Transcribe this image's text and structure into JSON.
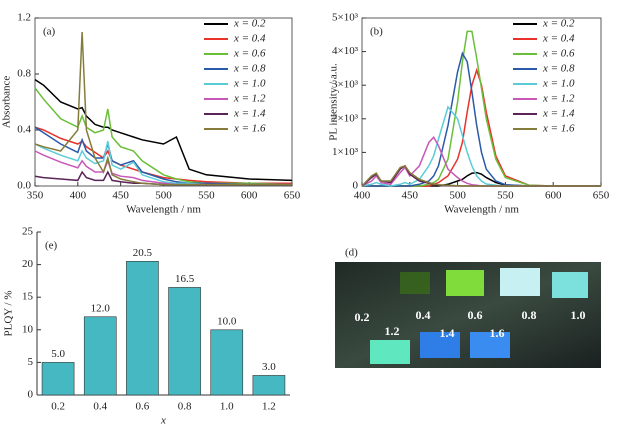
{
  "chart_data": [
    {
      "type": "line",
      "panel_label": "(a)",
      "xlabel": "Wavelength / nm",
      "ylabel": "Absorbance",
      "xlim": [
        350,
        650
      ],
      "xticks": [
        350,
        400,
        450,
        500,
        550,
        600,
        650
      ],
      "ylim": [
        0,
        1.2
      ],
      "yticks": [
        {
          "value": 0,
          "label": "0.0"
        },
        0.4,
        0.8,
        1.2
      ],
      "legend": "upper right",
      "x": [
        350,
        360,
        380,
        400,
        405,
        410,
        420,
        430,
        435,
        440,
        450,
        465,
        475,
        500,
        515,
        530,
        550,
        600,
        650
      ],
      "series": [
        {
          "name": "x = 0.2",
          "color": "#000000",
          "values": [
            0.76,
            0.72,
            0.6,
            0.55,
            0.56,
            0.5,
            0.44,
            0.42,
            0.42,
            0.4,
            0.38,
            0.35,
            0.33,
            0.3,
            0.35,
            0.12,
            0.08,
            0.05,
            0.04
          ]
        },
        {
          "name": "x = 0.4",
          "color": "#e8322a",
          "values": [
            0.42,
            0.4,
            0.34,
            0.3,
            0.32,
            0.28,
            0.24,
            0.2,
            0.25,
            0.18,
            0.15,
            0.12,
            0.1,
            0.06,
            0.05,
            0.04,
            0.03,
            0.02,
            0.02
          ]
        },
        {
          "name": "x = 0.6",
          "color": "#6abf3a",
          "values": [
            0.7,
            0.62,
            0.48,
            0.42,
            0.5,
            0.42,
            0.38,
            0.4,
            0.55,
            0.35,
            0.28,
            0.25,
            0.18,
            0.08,
            0.05,
            0.03,
            0.02,
            0.02,
            0.01
          ]
        },
        {
          "name": "x = 0.8",
          "color": "#2a5aa8",
          "values": [
            0.42,
            0.38,
            0.3,
            0.24,
            0.33,
            0.25,
            0.2,
            0.2,
            0.3,
            0.18,
            0.15,
            0.18,
            0.1,
            0.05,
            0.03,
            0.02,
            0.02,
            0.01,
            0.01
          ]
        },
        {
          "name": "x = 1.0",
          "color": "#5ccbd8",
          "values": [
            0.3,
            0.27,
            0.22,
            0.18,
            0.25,
            0.2,
            0.16,
            0.18,
            0.32,
            0.15,
            0.12,
            0.17,
            0.08,
            0.03,
            0.02,
            0.02,
            0.01,
            0.01,
            0.01
          ]
        },
        {
          "name": "x = 1.2",
          "color": "#c858b8",
          "values": [
            0.25,
            0.22,
            0.17,
            0.13,
            0.18,
            0.14,
            0.1,
            0.1,
            0.18,
            0.09,
            0.07,
            0.06,
            0.04,
            0.02,
            0.01,
            0.01,
            0.01,
            0.01,
            0.01
          ]
        },
        {
          "name": "x = 1.4",
          "color": "#5a2458",
          "values": [
            0.07,
            0.06,
            0.05,
            0.04,
            0.1,
            0.06,
            0.04,
            0.04,
            0.1,
            0.04,
            0.03,
            0.02,
            0.02,
            0.01,
            0.01,
            0.01,
            0.01,
            0.01,
            0.01
          ]
        },
        {
          "name": "x = 1.6",
          "color": "#857c3c",
          "values": [
            0.3,
            0.28,
            0.25,
            0.4,
            1.1,
            0.4,
            0.2,
            0.1,
            0.2,
            0.08,
            0.05,
            0.03,
            0.02,
            0.01,
            0.01,
            0.01,
            0.01,
            0.01,
            0.01
          ]
        }
      ]
    },
    {
      "type": "line",
      "panel_label": "(b)",
      "xlabel": "Wavelength / nm",
      "ylabel": "PL intensity / a.u.",
      "xlim": [
        400,
        650
      ],
      "xticks": [
        400,
        450,
        500,
        550,
        600,
        650
      ],
      "ylim": [
        0,
        5000
      ],
      "yticks": [
        0,
        {
          "value": 1000,
          "label": "1×10³"
        },
        {
          "value": 2000,
          "label": "2×10³"
        },
        {
          "value": 3000,
          "label": "3×10³"
        },
        {
          "value": 4000,
          "label": "4×10³"
        },
        {
          "value": 5000,
          "label": "5×10³"
        }
      ],
      "legend": "upper right",
      "x": [
        400,
        410,
        415,
        420,
        430,
        440,
        445,
        450,
        460,
        470,
        475,
        480,
        490,
        500,
        505,
        510,
        515,
        520,
        525,
        530,
        540,
        550,
        575,
        600,
        650
      ],
      "series": [
        {
          "name": "x = 0.2",
          "color": "#000000",
          "values": [
            0,
            0,
            0,
            0,
            0,
            0,
            0,
            0,
            0,
            0,
            0,
            0,
            50,
            150,
            200,
            300,
            380,
            400,
            350,
            250,
            100,
            30,
            0,
            0,
            0
          ]
        },
        {
          "name": "x = 0.4",
          "color": "#e8322a",
          "values": [
            0,
            0,
            0,
            0,
            0,
            0,
            0,
            0,
            0,
            0,
            50,
            100,
            300,
            800,
            1300,
            2200,
            3000,
            3450,
            3000,
            2200,
            900,
            300,
            20,
            0,
            0
          ]
        },
        {
          "name": "x = 0.6",
          "color": "#6abf3a",
          "values": [
            0,
            0,
            0,
            0,
            0,
            0,
            0,
            0,
            0,
            50,
            100,
            200,
            800,
            2500,
            3700,
            4600,
            4600,
            3800,
            2900,
            2000,
            800,
            250,
            20,
            0,
            0
          ]
        },
        {
          "name": "x = 0.8",
          "color": "#2a5aa8",
          "values": [
            0,
            0,
            0,
            0,
            0,
            0,
            0,
            0,
            50,
            150,
            300,
            600,
            1800,
            3400,
            3950,
            3700,
            2800,
            1800,
            1000,
            500,
            150,
            40,
            0,
            0,
            0
          ]
        },
        {
          "name": "x = 1.0",
          "color": "#5ccbd8",
          "values": [
            0,
            50,
            100,
            50,
            0,
            50,
            100,
            50,
            200,
            600,
            900,
            1400,
            2350,
            2000,
            1500,
            1000,
            600,
            300,
            150,
            60,
            20,
            0,
            0,
            0,
            0
          ]
        },
        {
          "name": "x = 1.2",
          "color": "#c858b8",
          "values": [
            0,
            150,
            300,
            100,
            50,
            400,
            550,
            300,
            600,
            1300,
            1450,
            1200,
            500,
            250,
            150,
            80,
            40,
            20,
            0,
            0,
            0,
            0,
            0,
            0,
            0
          ]
        },
        {
          "name": "x = 1.4",
          "color": "#5a2458",
          "values": [
            0,
            250,
            350,
            150,
            100,
            500,
            600,
            350,
            150,
            80,
            50,
            30,
            10,
            0,
            0,
            0,
            0,
            0,
            0,
            0,
            0,
            0,
            0,
            0,
            0
          ]
        },
        {
          "name": "x = 1.6",
          "color": "#857c3c",
          "values": [
            0,
            300,
            380,
            150,
            150,
            550,
            600,
            400,
            200,
            100,
            60,
            40,
            20,
            10,
            0,
            0,
            0,
            0,
            0,
            0,
            0,
            0,
            0,
            0,
            0
          ]
        }
      ]
    },
    {
      "type": "bar",
      "panel_label": "(e)",
      "xlabel": "x",
      "ylabel": "PLQY / %",
      "color": "#45b8c2",
      "categories": [
        "0.2",
        "0.4",
        "0.6",
        "0.8",
        "1.0",
        "1.2"
      ],
      "values": [
        5,
        12,
        20.5,
        16.5,
        10,
        3
      ],
      "value_labels": [
        "5.0",
        "12.0",
        "20.5",
        "16.5",
        "10.0",
        "3.0"
      ],
      "ylim": [
        0,
        25
      ],
      "yticks": [
        0,
        5,
        10,
        15,
        20,
        25
      ]
    }
  ],
  "photo": {
    "panel_label": "(d)",
    "samples": [
      "0.2",
      "0.4",
      "0.6",
      "0.8",
      "1.0",
      "1.2",
      "1.4",
      "1.6"
    ]
  }
}
